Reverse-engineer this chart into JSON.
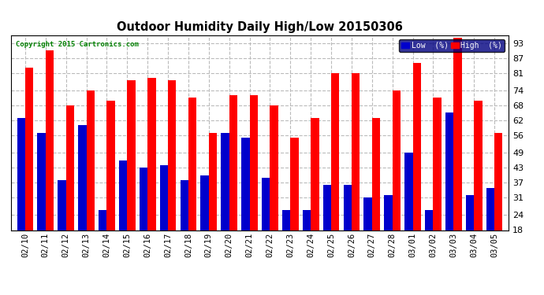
{
  "title": "Outdoor Humidity Daily High/Low 20150306",
  "copyright": "Copyright 2015 Cartronics.com",
  "dates": [
    "02/10",
    "02/11",
    "02/12",
    "02/13",
    "02/14",
    "02/15",
    "02/16",
    "02/17",
    "02/18",
    "02/19",
    "02/20",
    "02/21",
    "02/22",
    "02/23",
    "02/24",
    "02/25",
    "02/26",
    "02/27",
    "02/28",
    "03/01",
    "03/02",
    "03/03",
    "03/04",
    "03/05"
  ],
  "high": [
    83,
    90,
    68,
    74,
    70,
    78,
    79,
    78,
    71,
    57,
    72,
    72,
    68,
    55,
    63,
    81,
    81,
    63,
    74,
    85,
    71,
    95,
    70,
    57
  ],
  "low": [
    63,
    57,
    38,
    60,
    26,
    46,
    43,
    44,
    38,
    40,
    57,
    55,
    39,
    26,
    26,
    36,
    36,
    31,
    32,
    49,
    26,
    65,
    32,
    35
  ],
  "high_color": "#ff0000",
  "low_color": "#0000cc",
  "bg_color": "#ffffff",
  "grid_color": "#bbbbbb",
  "ylim_min": 18,
  "ylim_max": 95,
  "yticks": [
    18,
    24,
    31,
    37,
    43,
    49,
    56,
    62,
    68,
    74,
    81,
    87,
    93
  ],
  "bar_width": 0.4,
  "legend_labels": [
    "Low  (%)",
    "High  (%)"
  ]
}
